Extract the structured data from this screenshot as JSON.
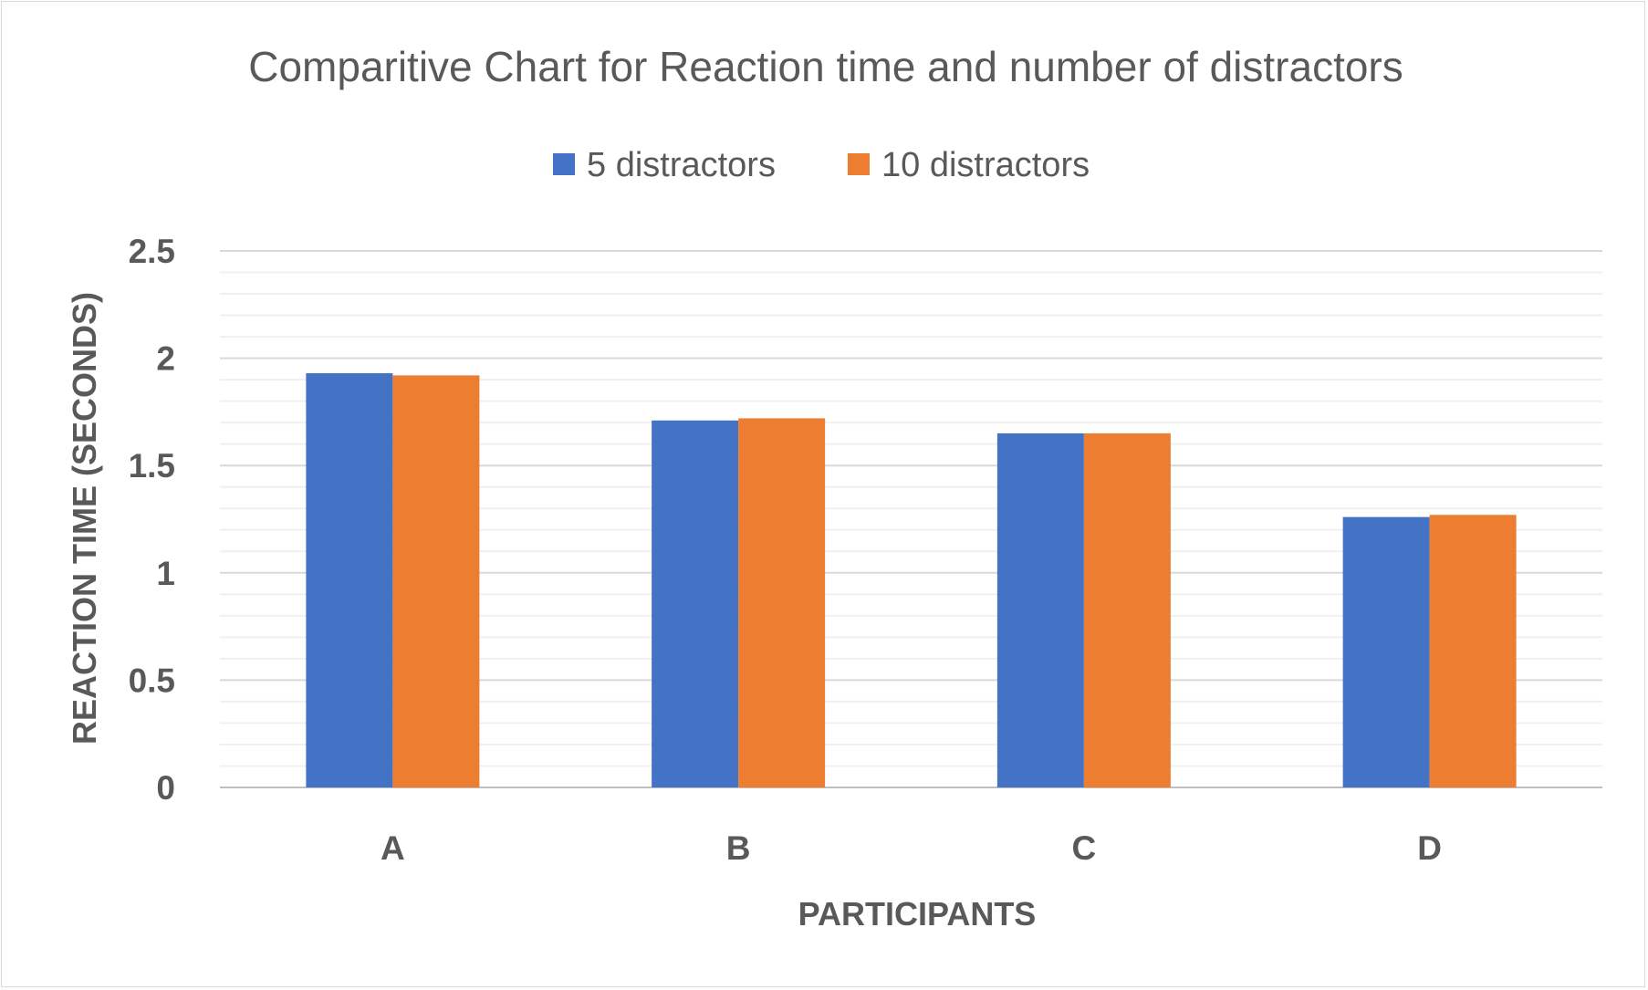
{
  "chart_data": {
    "type": "bar",
    "title": "Comparitive Chart for Reaction time and number of distractors",
    "xlabel": "PARTICIPANTS",
    "ylabel": "REACTION TIME (SECONDS)",
    "categories": [
      "A",
      "B",
      "C",
      "D"
    ],
    "series": [
      {
        "name": "5 distractors",
        "color": "#4472C4",
        "values": [
          1.93,
          1.71,
          1.65,
          1.26
        ]
      },
      {
        "name": "10 distractors",
        "color": "#ED7D31",
        "values": [
          1.92,
          1.72,
          1.65,
          1.27
        ]
      }
    ],
    "ylim": [
      0,
      2.5
    ],
    "yticks": [
      0,
      0.5,
      1,
      1.5,
      2,
      2.5
    ],
    "ytick_labels": [
      "0",
      "0.5",
      "1",
      "1.5",
      "2",
      "2.5"
    ],
    "grid": true,
    "minor_grid": true,
    "legend_position": "top"
  }
}
